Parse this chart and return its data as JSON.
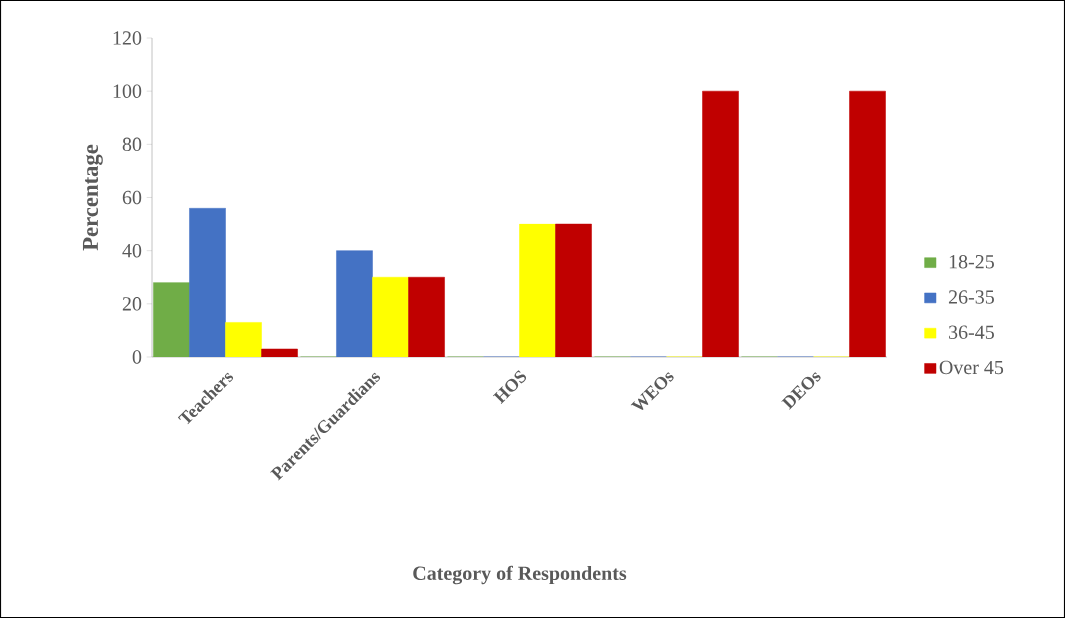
{
  "chart_data": {
    "type": "bar",
    "xlabel": "Category of Respondents",
    "ylabel": "Percentage",
    "categories": [
      "Teachers",
      "Parents/Guardians",
      "HOS",
      "WEOs",
      "DEOs"
    ],
    "series": [
      {
        "name": "18-25",
        "color": "#70ad47",
        "values": [
          28,
          0,
          0,
          0,
          0
        ]
      },
      {
        "name": "26-35",
        "color": "#4472c4",
        "values": [
          56,
          40,
          0,
          0,
          0
        ]
      },
      {
        "name": "36-45",
        "color": "#ffff00",
        "values": [
          13,
          30,
          50,
          0,
          0
        ]
      },
      {
        "name": "Over 45",
        "color": "#c00000",
        "values": [
          3,
          30,
          50,
          100,
          100
        ]
      }
    ],
    "ylim": [
      0,
      120
    ],
    "yticks": [
      0,
      20,
      40,
      60,
      80,
      100,
      120
    ],
    "legend": "right",
    "grid": false
  }
}
